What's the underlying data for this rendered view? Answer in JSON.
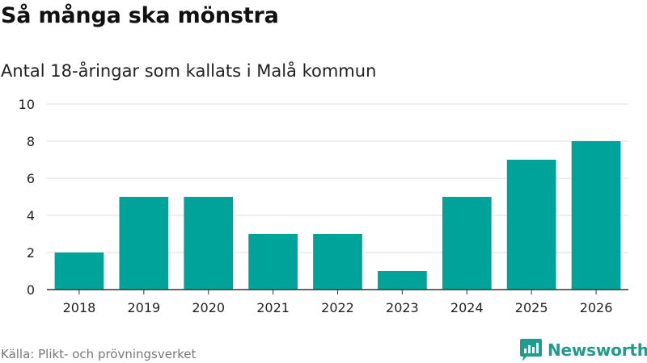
{
  "title": "Så många ska mönstra",
  "subtitle": "Antal 18-åringar som kallats i Malå kommun",
  "source": "Källa: Plikt- och prövningsverket",
  "brand": "Newsworthy",
  "colors": {
    "bar": "#00a399",
    "grid": "#dddddd",
    "axis": "#333333",
    "tick_text": "#222222",
    "brand": "#1e9c8c"
  },
  "chart_data": {
    "type": "bar",
    "title": "Så många ska mönstra",
    "subtitle": "Antal 18-åringar som kallats i Malå kommun",
    "xlabel": "",
    "ylabel": "",
    "categories": [
      "2018",
      "2019",
      "2020",
      "2021",
      "2022",
      "2023",
      "2024",
      "2025",
      "2026"
    ],
    "values": [
      2,
      5,
      5,
      3,
      3,
      1,
      5,
      7,
      8
    ],
    "ylim": [
      0,
      10
    ],
    "yticks": [
      0,
      2,
      4,
      6,
      8,
      10
    ],
    "grid": true,
    "legend": "none"
  }
}
